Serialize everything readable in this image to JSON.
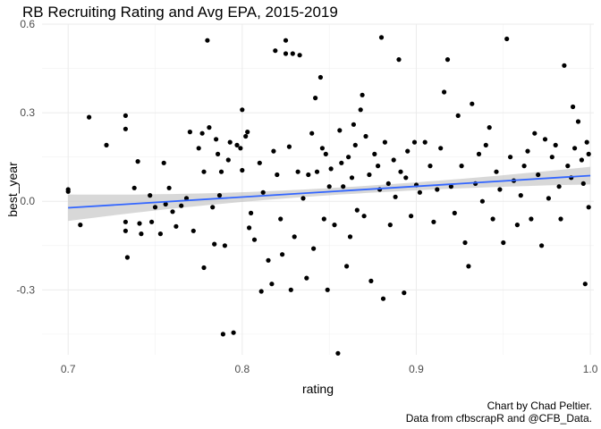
{
  "chart_data": {
    "type": "scatter",
    "title": "RB Recruiting Rating and Avg EPA, 2015-2019",
    "xlabel": "rating",
    "ylabel": "best_year",
    "xlim": [
      0.685,
      1.002
    ],
    "ylim": [
      -0.52,
      0.6
    ],
    "xticks": [
      0.7,
      0.8,
      0.9,
      1.0
    ],
    "xtick_labels": [
      "0.7",
      "0.8",
      "0.9",
      "1.0"
    ],
    "yticks": [
      -0.3,
      0.0,
      0.3,
      0.6
    ],
    "ytick_labels": [
      "-0.3",
      "0.0",
      "0.3",
      "0.6"
    ],
    "grid": true,
    "point_color": "#000000",
    "trend": {
      "method": "linear",
      "intercept_at": [
        0.7,
        -0.022
      ],
      "slope_end": [
        1.0,
        0.087
      ],
      "band_halfwidth_left": 0.045,
      "band_halfwidth_right": 0.03,
      "line_color": "#3366FF",
      "band_color": "#BEBEBE"
    },
    "points": [
      [
        0.7,
        0.04
      ],
      [
        0.7,
        0.033
      ],
      [
        0.707,
        -0.08
      ],
      [
        0.712,
        0.285
      ],
      [
        0.722,
        0.19
      ],
      [
        0.733,
        0.29
      ],
      [
        0.733,
        0.245
      ],
      [
        0.734,
        -0.19
      ],
      [
        0.733,
        -0.07
      ],
      [
        0.733,
        -0.1
      ],
      [
        0.738,
        0.045
      ],
      [
        0.74,
        0.135
      ],
      [
        0.741,
        -0.075
      ],
      [
        0.742,
        -0.11
      ],
      [
        0.747,
        0.02
      ],
      [
        0.748,
        -0.07
      ],
      [
        0.75,
        -0.02
      ],
      [
        0.753,
        -0.11
      ],
      [
        0.755,
        0.13
      ],
      [
        0.756,
        -0.01
      ],
      [
        0.758,
        0.045
      ],
      [
        0.76,
        -0.035
      ],
      [
        0.762,
        -0.085
      ],
      [
        0.765,
        -0.015
      ],
      [
        0.768,
        0.01
      ],
      [
        0.77,
        0.235
      ],
      [
        0.772,
        -0.1
      ],
      [
        0.775,
        0.18
      ],
      [
        0.777,
        0.23
      ],
      [
        0.778,
        -0.225
      ],
      [
        0.778,
        0.1
      ],
      [
        0.78,
        0.545
      ],
      [
        0.781,
        0.25
      ],
      [
        0.783,
        -0.02
      ],
      [
        0.784,
        -0.145
      ],
      [
        0.785,
        0.21
      ],
      [
        0.786,
        0.16
      ],
      [
        0.787,
        0.02
      ],
      [
        0.788,
        0.1
      ],
      [
        0.789,
        -0.45
      ],
      [
        0.79,
        -0.15
      ],
      [
        0.792,
        0.14
      ],
      [
        0.793,
        0.2
      ],
      [
        0.795,
        -0.445
      ],
      [
        0.797,
        0.19
      ],
      [
        0.799,
        0.18
      ],
      [
        0.8,
        0.105
      ],
      [
        0.8,
        0.31
      ],
      [
        0.802,
        0.22
      ],
      [
        0.803,
        0.235
      ],
      [
        0.804,
        -0.09
      ],
      [
        0.805,
        -0.04
      ],
      [
        0.807,
        -0.13
      ],
      [
        0.81,
        0.13
      ],
      [
        0.811,
        -0.305
      ],
      [
        0.812,
        0.03
      ],
      [
        0.815,
        -0.2
      ],
      [
        0.817,
        -0.28
      ],
      [
        0.818,
        0.17
      ],
      [
        0.819,
        0.51
      ],
      [
        0.82,
        0.09
      ],
      [
        0.822,
        -0.06
      ],
      [
        0.823,
        -0.18
      ],
      [
        0.825,
        0.5
      ],
      [
        0.825,
        0.545
      ],
      [
        0.827,
        0.185
      ],
      [
        0.828,
        -0.3
      ],
      [
        0.829,
        0.5
      ],
      [
        0.83,
        -0.12
      ],
      [
        0.832,
        0.1
      ],
      [
        0.833,
        0.495
      ],
      [
        0.835,
        0.01
      ],
      [
        0.837,
        -0.26
      ],
      [
        0.838,
        0.09
      ],
      [
        0.84,
        0.23
      ],
      [
        0.841,
        -0.16
      ],
      [
        0.842,
        0.35
      ],
      [
        0.843,
        0.1
      ],
      [
        0.845,
        0.42
      ],
      [
        0.846,
        0.18
      ],
      [
        0.847,
        -0.06
      ],
      [
        0.848,
        0.16
      ],
      [
        0.849,
        -0.3
      ],
      [
        0.85,
        0.05
      ],
      [
        0.851,
        0.11
      ],
      [
        0.853,
        -0.08
      ],
      [
        0.855,
        -0.515
      ],
      [
        0.856,
        0.24
      ],
      [
        0.857,
        0.13
      ],
      [
        0.858,
        0.05
      ],
      [
        0.86,
        -0.22
      ],
      [
        0.861,
        0.15
      ],
      [
        0.862,
        -0.12
      ],
      [
        0.863,
        0.08
      ],
      [
        0.864,
        0.26
      ],
      [
        0.865,
        0.19
      ],
      [
        0.866,
        -0.03
      ],
      [
        0.868,
        0.31
      ],
      [
        0.869,
        0.36
      ],
      [
        0.87,
        -0.05
      ],
      [
        0.871,
        0.22
      ],
      [
        0.873,
        0.09
      ],
      [
        0.874,
        -0.27
      ],
      [
        0.876,
        0.16
      ],
      [
        0.878,
        0.12
      ],
      [
        0.879,
        0.04
      ],
      [
        0.88,
        0.555
      ],
      [
        0.881,
        -0.33
      ],
      [
        0.882,
        0.2
      ],
      [
        0.884,
        0.06
      ],
      [
        0.885,
        -0.08
      ],
      [
        0.887,
        0.14
      ],
      [
        0.888,
        0.015
      ],
      [
        0.89,
        0.48
      ],
      [
        0.891,
        0.1
      ],
      [
        0.893,
        -0.31
      ],
      [
        0.894,
        0.08
      ],
      [
        0.895,
        0.17
      ],
      [
        0.897,
        -0.05
      ],
      [
        0.899,
        0.2
      ],
      [
        0.9,
        0.055
      ],
      [
        0.902,
        0.03
      ],
      [
        0.905,
        0.2
      ],
      [
        0.908,
        0.12
      ],
      [
        0.91,
        -0.07
      ],
      [
        0.912,
        0.04
      ],
      [
        0.914,
        0.18
      ],
      [
        0.916,
        0.37
      ],
      [
        0.918,
        0.48
      ],
      [
        0.92,
        0.05
      ],
      [
        0.922,
        -0.04
      ],
      [
        0.924,
        0.29
      ],
      [
        0.926,
        0.12
      ],
      [
        0.928,
        -0.14
      ],
      [
        0.93,
        -0.22
      ],
      [
        0.932,
        0.33
      ],
      [
        0.934,
        0.06
      ],
      [
        0.936,
        0.16
      ],
      [
        0.938,
        0.0
      ],
      [
        0.94,
        0.19
      ],
      [
        0.942,
        0.25
      ],
      [
        0.944,
        -0.06
      ],
      [
        0.946,
        0.1
      ],
      [
        0.948,
        0.04
      ],
      [
        0.95,
        -0.14
      ],
      [
        0.952,
        0.55
      ],
      [
        0.954,
        0.15
      ],
      [
        0.956,
        0.07
      ],
      [
        0.958,
        -0.08
      ],
      [
        0.96,
        0.02
      ],
      [
        0.962,
        0.12
      ],
      [
        0.964,
        0.17
      ],
      [
        0.966,
        -0.06
      ],
      [
        0.968,
        0.23
      ],
      [
        0.97,
        0.09
      ],
      [
        0.972,
        -0.15
      ],
      [
        0.974,
        0.21
      ],
      [
        0.976,
        0.01
      ],
      [
        0.978,
        0.15
      ],
      [
        0.98,
        0.19
      ],
      [
        0.982,
        0.05
      ],
      [
        0.983,
        -0.06
      ],
      [
        0.985,
        0.46
      ],
      [
        0.987,
        0.12
      ],
      [
        0.989,
        0.08
      ],
      [
        0.99,
        0.32
      ],
      [
        0.991,
        0.18
      ],
      [
        0.993,
        0.27
      ],
      [
        0.995,
        0.14
      ],
      [
        0.996,
        0.06
      ],
      [
        0.997,
        -0.28
      ],
      [
        0.998,
        0.2
      ],
      [
        0.999,
        -0.02
      ],
      [
        0.999,
        0.16
      ]
    ]
  },
  "caption": {
    "line1": "Chart by Chad Peltier.",
    "line2": "Data from cfbscrapR and @CFB_Data."
  }
}
